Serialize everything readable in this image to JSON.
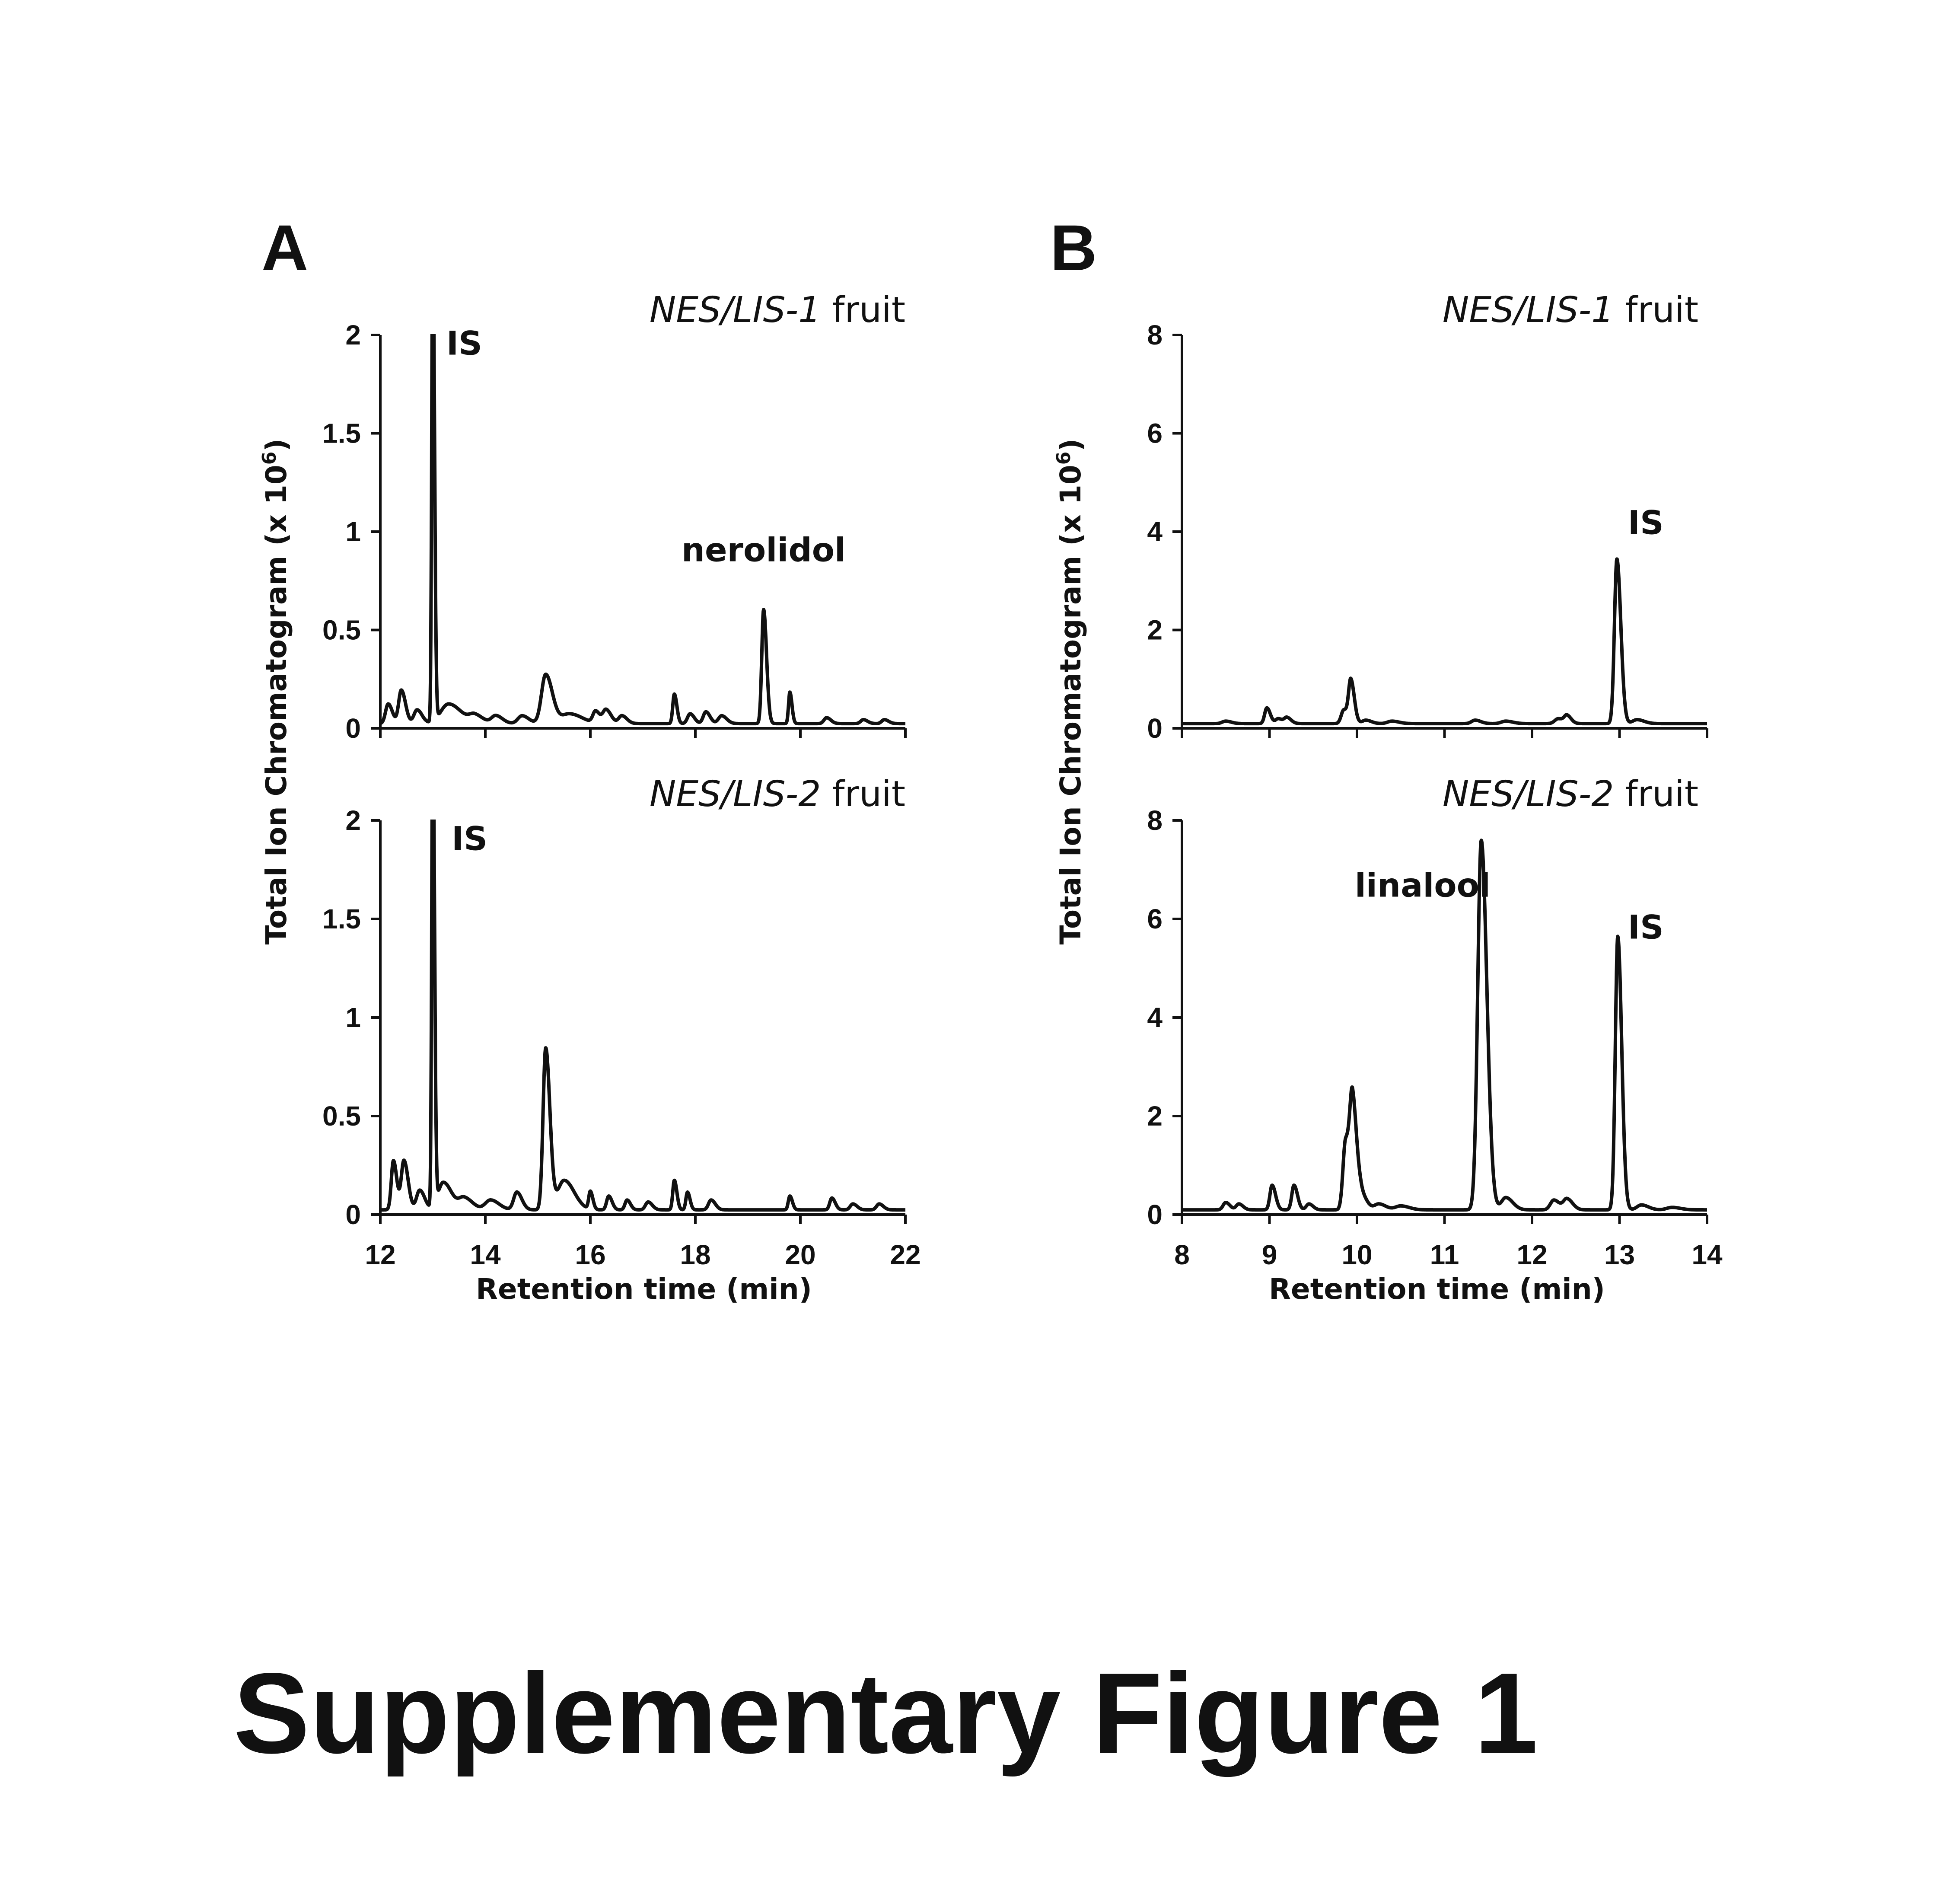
{
  "figure_title": "Supplementary Figure 1",
  "chart_data": [
    {
      "panel": "A",
      "type": "line",
      "title_italic": "NES/LIS-1",
      "title_rest": " fruit",
      "xlabel": "",
      "ylabel": "Total Ion Chromatogram (x 10",
      "ylabel_sup": "6",
      "ylabel_end": ")",
      "xlim": [
        12,
        22
      ],
      "ylim": [
        0,
        2
      ],
      "yticks": [
        "0",
        "0.5",
        "1",
        "1.5",
        "2"
      ],
      "xticks": [],
      "annotations": [
        {
          "text": "IS",
          "x": 13.6,
          "y": 1.9
        },
        {
          "text": "nerolidol",
          "x": 19.3,
          "y": 0.85
        }
      ],
      "peaks": [
        [
          12.15,
          0.1,
          0.05
        ],
        [
          12.4,
          0.17,
          0.05
        ],
        [
          12.7,
          0.07,
          0.06
        ],
        [
          13.0,
          2.5,
          0.02
        ],
        [
          13.3,
          0.1,
          0.15
        ],
        [
          13.8,
          0.04,
          0.1
        ],
        [
          14.2,
          0.04,
          0.08
        ],
        [
          14.7,
          0.04,
          0.08
        ],
        [
          15.15,
          0.25,
          0.08
        ],
        [
          15.6,
          0.05,
          0.15
        ],
        [
          16.1,
          0.06,
          0.05
        ],
        [
          16.3,
          0.07,
          0.06
        ],
        [
          16.6,
          0.04,
          0.06
        ],
        [
          17.6,
          0.15,
          0.03
        ],
        [
          17.9,
          0.05,
          0.05
        ],
        [
          18.2,
          0.06,
          0.05
        ],
        [
          18.5,
          0.04,
          0.06
        ],
        [
          19.3,
          0.58,
          0.035
        ],
        [
          19.8,
          0.16,
          0.025
        ],
        [
          20.5,
          0.03,
          0.05
        ],
        [
          21.2,
          0.02,
          0.05
        ],
        [
          21.6,
          0.02,
          0.05
        ]
      ]
    },
    {
      "panel": "A2",
      "type": "line",
      "title_italic": "NES/LIS-2",
      "title_rest": " fruit",
      "xlabel": "Retention time (min)",
      "ylabel": "",
      "xlim": [
        12,
        22
      ],
      "ylim": [
        0,
        2
      ],
      "yticks": [
        "0",
        "0.5",
        "1",
        "1.5",
        "2"
      ],
      "xticks": [
        "12",
        "14",
        "16",
        "18",
        "20",
        "22"
      ],
      "annotations": [
        {
          "text": "IS",
          "x": 13.7,
          "y": 1.85
        }
      ],
      "peaks": [
        [
          12.25,
          0.25,
          0.04
        ],
        [
          12.45,
          0.25,
          0.05
        ],
        [
          12.75,
          0.1,
          0.06
        ],
        [
          13.0,
          2.5,
          0.02
        ],
        [
          13.2,
          0.14,
          0.1
        ],
        [
          13.6,
          0.06,
          0.1
        ],
        [
          14.1,
          0.05,
          0.1
        ],
        [
          14.6,
          0.09,
          0.06
        ],
        [
          15.15,
          0.82,
          0.05
        ],
        [
          15.5,
          0.15,
          0.12
        ],
        [
          16.0,
          0.09,
          0.03
        ],
        [
          16.35,
          0.07,
          0.04
        ],
        [
          16.7,
          0.05,
          0.04
        ],
        [
          17.1,
          0.04,
          0.05
        ],
        [
          17.6,
          0.15,
          0.03
        ],
        [
          17.85,
          0.09,
          0.03
        ],
        [
          18.3,
          0.05,
          0.05
        ],
        [
          19.8,
          0.07,
          0.03
        ],
        [
          20.6,
          0.06,
          0.04
        ],
        [
          21.0,
          0.03,
          0.05
        ],
        [
          21.5,
          0.03,
          0.05
        ]
      ]
    },
    {
      "panel": "B",
      "type": "line",
      "title_italic": "NES/LIS-1",
      "title_rest": " fruit",
      "xlabel": "",
      "ylabel": "Total Ion Chromatogram (x 10",
      "ylabel_sup": "6",
      "ylabel_end": ")",
      "xlim": [
        8,
        14
      ],
      "ylim": [
        0,
        8
      ],
      "yticks": [
        "0",
        "2",
        "4",
        "6",
        "8"
      ],
      "xticks": [],
      "annotations": [
        {
          "text": "IS",
          "x": 13.3,
          "y": 3.95
        }
      ],
      "peaks": [
        [
          8.5,
          0.05,
          0.04
        ],
        [
          8.97,
          0.32,
          0.025
        ],
        [
          9.1,
          0.1,
          0.03
        ],
        [
          9.2,
          0.12,
          0.03
        ],
        [
          9.85,
          0.28,
          0.03
        ],
        [
          9.93,
          0.85,
          0.025
        ],
        [
          10.1,
          0.07,
          0.04
        ],
        [
          10.4,
          0.05,
          0.05
        ],
        [
          11.35,
          0.07,
          0.04
        ],
        [
          11.7,
          0.05,
          0.05
        ],
        [
          12.3,
          0.1,
          0.04
        ],
        [
          12.4,
          0.15,
          0.03
        ],
        [
          12.97,
          3.35,
          0.028
        ],
        [
          13.2,
          0.08,
          0.05
        ]
      ]
    },
    {
      "panel": "B2",
      "type": "line",
      "title_italic": "NES/LIS-2",
      "title_rest": " fruit",
      "xlabel": "Retention time (min)",
      "ylabel": "",
      "xlim": [
        8,
        14
      ],
      "ylim": [
        0,
        8
      ],
      "yticks": [
        "0",
        "2",
        "4",
        "6",
        "8"
      ],
      "xticks": [
        "8",
        "9",
        "10",
        "11",
        "12",
        "13",
        "14"
      ],
      "annotations": [
        {
          "text": "linalool",
          "x": 10.75,
          "y": 6.45
        },
        {
          "text": "IS",
          "x": 13.3,
          "y": 5.6
        }
      ],
      "peaks": [
        [
          8.5,
          0.15,
          0.03
        ],
        [
          8.65,
          0.12,
          0.03
        ],
        [
          9.03,
          0.5,
          0.025
        ],
        [
          9.28,
          0.5,
          0.025
        ],
        [
          9.45,
          0.12,
          0.03
        ],
        [
          9.87,
          1.4,
          0.03
        ],
        [
          9.95,
          2.1,
          0.03
        ],
        [
          10.05,
          0.3,
          0.04
        ],
        [
          10.25,
          0.12,
          0.05
        ],
        [
          10.5,
          0.08,
          0.06
        ],
        [
          11.42,
          7.5,
          0.04
        ],
        [
          11.7,
          0.25,
          0.05
        ],
        [
          12.25,
          0.2,
          0.04
        ],
        [
          12.4,
          0.22,
          0.04
        ],
        [
          12.98,
          5.55,
          0.028
        ],
        [
          13.25,
          0.1,
          0.05
        ],
        [
          13.6,
          0.05,
          0.06
        ]
      ]
    }
  ]
}
